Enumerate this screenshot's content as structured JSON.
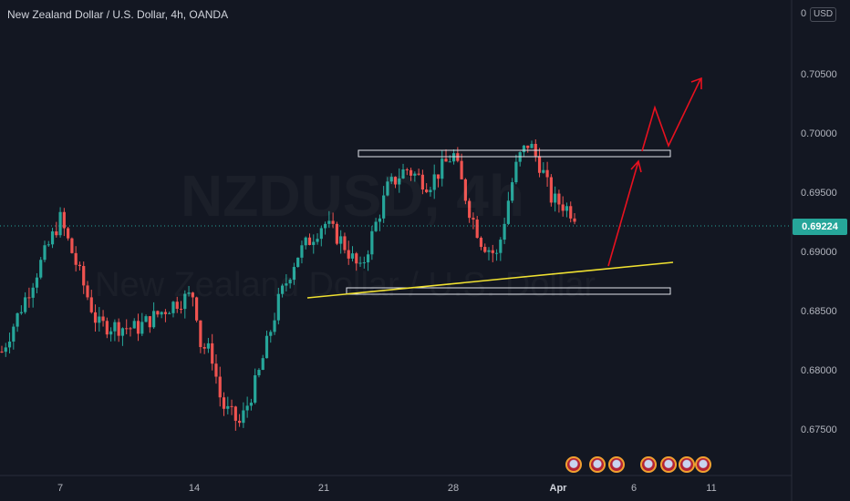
{
  "header": {
    "title": "New Zealand Dollar / U.S. Dollar, 4h, OANDA",
    "currency_badge": "USD"
  },
  "watermark": {
    "symbol": "NZDUSD, 4h",
    "name": "New Zealand Dollar / U.S. Dollar"
  },
  "price_axis": {
    "top_partial": "0",
    "ticks": [
      "0.70500",
      "0.70000",
      "0.69500",
      "0.69000",
      "0.68500",
      "0.68000",
      "0.67500"
    ]
  },
  "time_axis": {
    "ticks": [
      "7",
      "14",
      "21",
      "28",
      "Apr",
      "6",
      "11"
    ]
  },
  "last_price": "0.69224",
  "colors": {
    "background": "#131722",
    "up": "#26a69a",
    "down": "#ef5350",
    "trendline": "#f0e130",
    "forecast_arrow": "#e8111f",
    "zone_border": "#e0e3eb"
  },
  "event_icons": [
    "us-flag-icon",
    "us-flag-icon",
    "us-flag-icon",
    "us-flag-icon",
    "us-flag-icon",
    "nz-flag-icon",
    "us-flag-icon"
  ],
  "chart_data": {
    "type": "candlestick",
    "interval": "4h",
    "ylim": [
      0.6725,
      0.7097
    ],
    "close_path": [
      [
        "start",
        0.6798
      ],
      [
        "7",
        0.6918
      ],
      [
        "8.5",
        0.6825
      ],
      [
        "10",
        0.6822
      ],
      [
        "11.5",
        0.6845
      ],
      [
        "12.5",
        0.6852
      ],
      [
        "13.5",
        0.6808
      ],
      [
        "14",
        0.68
      ],
      [
        "15",
        0.6755
      ],
      [
        "16",
        0.6738
      ],
      [
        "17",
        0.678
      ],
      [
        "18",
        0.6845
      ],
      [
        "19",
        0.6885
      ],
      [
        "20",
        0.6915
      ],
      [
        "21",
        0.6898
      ],
      [
        "22",
        0.6872
      ],
      [
        "23",
        0.6945
      ],
      [
        "24.5",
        0.6962
      ],
      [
        "26",
        0.6948
      ],
      [
        "27",
        0.6975
      ],
      [
        "28",
        0.6925
      ],
      [
        "29",
        0.6898
      ],
      [
        "30",
        0.6885
      ],
      [
        "31",
        0.6945
      ],
      [
        "32",
        0.697
      ],
      [
        "32.5",
        0.6985
      ],
      [
        "33.5",
        0.6962
      ],
      [
        "34.5",
        0.6935
      ],
      [
        "35.5",
        0.693
      ],
      [
        "36.5",
        0.6922
      ],
      [
        "last",
        0.69224
      ]
    ],
    "annotations": [
      {
        "type": "resistance_zone",
        "price_low": 0.6983,
        "price_high": 0.6989
      },
      {
        "type": "support_zone",
        "price_low": 0.6866,
        "price_high": 0.6872
      },
      {
        "type": "trendline",
        "from_price": 0.6861,
        "to_price": 0.6891
      },
      {
        "type": "forecast_arrow",
        "direction": "up",
        "target": 0.7047
      }
    ]
  }
}
